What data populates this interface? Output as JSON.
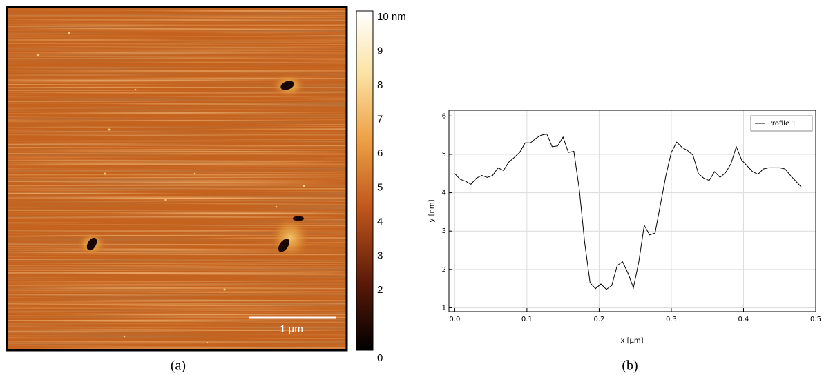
{
  "chart_data": [
    {
      "type": "image",
      "colorbar_lim": [
        0,
        10
      ],
      "colorbar_ticks": [
        {
          "value": 10,
          "label": "10 nm"
        },
        9,
        8,
        7,
        6,
        5,
        4,
        3,
        2,
        0
      ],
      "scale_bar_label": "1 µm",
      "caption": "(a)"
    },
    {
      "type": "line",
      "caption": "(b)",
      "xlabel": "x [µm]",
      "ylabel": "y [nm]",
      "xlim": [
        -0.008,
        0.5
      ],
      "ylim": [
        0.9,
        6.15
      ],
      "xticks": [
        {
          "value": 0,
          "label": "0.0"
        },
        0.1,
        0.2,
        0.3,
        0.4,
        0.5
      ],
      "yticks": [
        1,
        2,
        3,
        4,
        5,
        6
      ],
      "grid": true,
      "legend": "upper right",
      "x": [
        0,
        0.0075,
        0.015,
        0.0225,
        0.03,
        0.0375,
        0.045,
        0.0525,
        0.06,
        0.0675,
        0.075,
        0.0825,
        0.09,
        0.0975,
        0.105,
        0.1125,
        0.12,
        0.1275,
        0.135,
        0.1425,
        0.15,
        0.1575,
        0.165,
        0.1725,
        0.18,
        0.1875,
        0.195,
        0.2025,
        0.21,
        0.2175,
        0.225,
        0.2325,
        0.24,
        0.2475,
        0.255,
        0.2625,
        0.27,
        0.2775,
        0.285,
        0.2925,
        0.3,
        0.3075,
        0.315,
        0.3225,
        0.33,
        0.3375,
        0.345,
        0.3525,
        0.36,
        0.3675,
        0.375,
        0.3825,
        0.39,
        0.3975,
        0.405,
        0.4125,
        0.42,
        0.4275,
        0.435,
        0.4425,
        0.45,
        0.4575,
        0.465,
        0.4725,
        0.48
      ],
      "series": [
        {
          "name": "Profile 1",
          "color": "#000000",
          "values": [
            4.5,
            4.35,
            4.3,
            4.22,
            4.38,
            4.45,
            4.4,
            4.45,
            4.65,
            4.58,
            4.8,
            4.92,
            5.05,
            5.3,
            5.3,
            5.42,
            5.5,
            5.53,
            5.2,
            5.22,
            5.45,
            5.05,
            5.08,
            4.1,
            2.7,
            1.65,
            1.5,
            1.62,
            1.48,
            1.58,
            2.1,
            2.2,
            1.9,
            1.52,
            2.2,
            3.15,
            2.9,
            2.95,
            3.7,
            4.45,
            5.05,
            5.32,
            5.18,
            5.1,
            4.98,
            4.5,
            4.38,
            4.32,
            4.55,
            4.4,
            4.52,
            4.75,
            5.2,
            4.85,
            4.7,
            4.55,
            4.48,
            4.62,
            4.65,
            4.65,
            4.65,
            4.62,
            4.45,
            4.3,
            4.15
          ]
        }
      ]
    }
  ]
}
